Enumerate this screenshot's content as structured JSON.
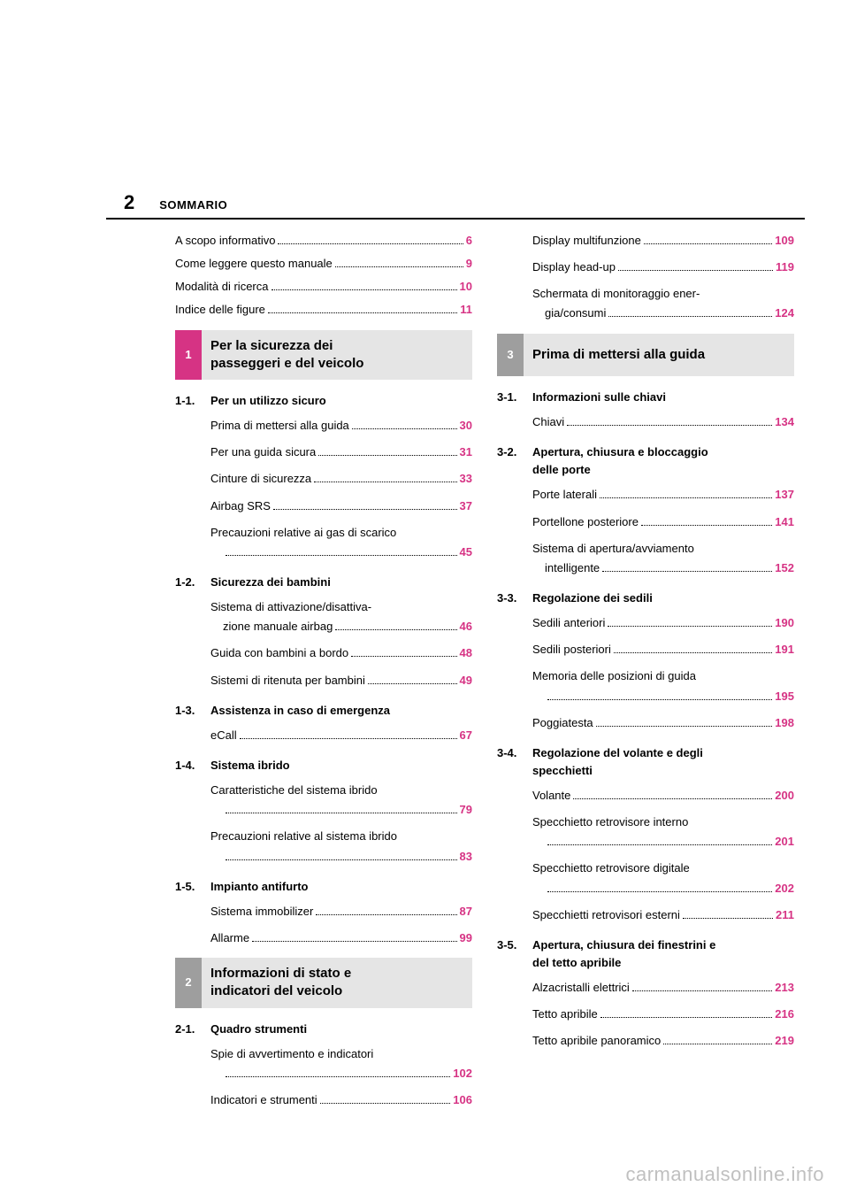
{
  "page_number": "2",
  "header_title": "SOMMARIO",
  "colors": {
    "accent": "#d63384",
    "gray_box": "#e5e5e5",
    "gray_tab": "#9e9e9e",
    "watermark": "#c0c0c0"
  },
  "intro_lines": [
    {
      "label": "A scopo informativo",
      "page": "6"
    },
    {
      "label": "Come leggere questo manuale",
      "page": "9"
    },
    {
      "label": "Modalità di ricerca",
      "page": "10"
    },
    {
      "label": "Indice delle figure",
      "page": "11"
    }
  ],
  "section1": {
    "num": "1",
    "title_l1": "Per la sicurezza dei",
    "title_l2": "passeggeri e del veicolo",
    "sub1": {
      "num": "1-1.",
      "title": "Per un utilizzo sicuro",
      "items": [
        {
          "label": "Prima di mettersi alla guida",
          "page": "30"
        },
        {
          "label": "Per una guida sicura",
          "page": "31"
        },
        {
          "label": "Cinture di sicurezza",
          "page": "33"
        },
        {
          "label": "Airbag SRS",
          "page": "37"
        }
      ],
      "wrap_item": {
        "l1": "Precauzioni relative ai gas di scarico",
        "page": "45"
      }
    },
    "sub2": {
      "num": "1-2.",
      "title": "Sicurezza dei bambini",
      "wrap_item": {
        "l1": "Sistema di attivazione/disattiva-",
        "l2": "zione manuale airbag",
        "page": "46"
      },
      "items": [
        {
          "label": "Guida con bambini a bordo",
          "page": "48"
        },
        {
          "label": "Sistemi di ritenuta per bambini",
          "page": "49"
        }
      ]
    },
    "sub3": {
      "num": "1-3.",
      "title": "Assistenza in caso di emergenza",
      "items": [
        {
          "label": "eCall",
          "page": "67"
        }
      ]
    },
    "sub4": {
      "num": "1-4.",
      "title": "Sistema ibrido",
      "wrap1": {
        "l1": "Caratteristiche del sistema ibrido",
        "page": "79"
      },
      "wrap2": {
        "l1": "Precauzioni relative al sistema ibrido",
        "page": "83"
      }
    },
    "sub5": {
      "num": "1-5.",
      "title": "Impianto antifurto",
      "items": [
        {
          "label": "Sistema immobilizer",
          "page": "87"
        },
        {
          "label": "Allarme",
          "page": "99"
        }
      ]
    }
  },
  "section2": {
    "num": "2",
    "title_l1": "Informazioni di stato e",
    "title_l2": "indicatori del veicolo",
    "sub1": {
      "num": "2-1.",
      "title": "Quadro strumenti",
      "wrap1": {
        "l1": "Spie di avvertimento e indicatori",
        "page": "102"
      },
      "item1": {
        "label": "Indicatori e strumenti",
        "page": "106"
      },
      "item2": {
        "label": "Display multifunzione",
        "page": "109"
      },
      "item3": {
        "label": "Display head-up",
        "page": "119"
      },
      "wrap2": {
        "l1": "Schermata di monitoraggio ener-",
        "l2": "gia/consumi",
        "page": "124"
      }
    }
  },
  "section3": {
    "num": "3",
    "title": "Prima di mettersi alla guida",
    "sub1": {
      "num": "3-1.",
      "title": "Informazioni sulle chiavi",
      "items": [
        {
          "label": "Chiavi",
          "page": "134"
        }
      ]
    },
    "sub2": {
      "num": "3-2.",
      "title_l1": "Apertura, chiusura e bloccaggio",
      "title_l2": "delle porte",
      "items": [
        {
          "label": "Porte laterali",
          "page": "137"
        },
        {
          "label": "Portellone posteriore",
          "page": "141"
        }
      ],
      "wrap": {
        "l1": "Sistema di apertura/avviamento",
        "l2": "intelligente",
        "page": "152"
      }
    },
    "sub3": {
      "num": "3-3.",
      "title": "Regolazione dei sedili",
      "items": [
        {
          "label": "Sedili anteriori",
          "page": "190"
        },
        {
          "label": "Sedili posteriori",
          "page": "191"
        }
      ],
      "wrap": {
        "l1": "Memoria delle posizioni di guida",
        "page": "195"
      },
      "item_last": {
        "label": "Poggiatesta",
        "page": "198"
      }
    },
    "sub4": {
      "num": "3-4.",
      "title_l1": "Regolazione del volante e degli",
      "title_l2": "specchietti",
      "item1": {
        "label": "Volante",
        "page": "200"
      },
      "wrap1": {
        "l1": "Specchietto retrovisore interno",
        "page": "201"
      },
      "wrap2": {
        "l1": "Specchietto retrovisore digitale",
        "page": "202"
      },
      "item2": {
        "label": "Specchietti retrovisori esterni",
        "page": "211"
      }
    },
    "sub5": {
      "num": "3-5.",
      "title_l1": "Apertura, chiusura dei finestrini e",
      "title_l2": "del tetto apribile",
      "items": [
        {
          "label": "Alzacristalli elettrici",
          "page": "213"
        },
        {
          "label": "Tetto apribile",
          "page": "216"
        },
        {
          "label": "Tetto apribile panoramico",
          "page": "219"
        }
      ]
    }
  },
  "watermark": "carmanualsonline.info"
}
